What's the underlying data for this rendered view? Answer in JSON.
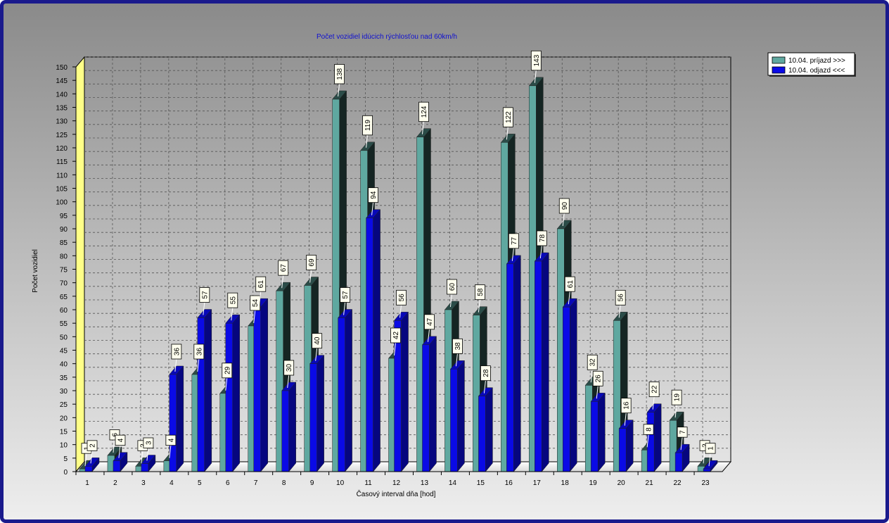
{
  "chart_data": {
    "type": "bar",
    "title": "Počet vozidiel idúcich rýchlosťou nad 60km/h",
    "xlabel": "Časový interval dňa [hod]",
    "ylabel": "Počet vozidiel",
    "ylim": [
      0,
      150
    ],
    "ytick_step": 5,
    "grid": true,
    "legend_position": "top-right",
    "categories": [
      "1",
      "2",
      "3",
      "4",
      "5",
      "6",
      "7",
      "8",
      "9",
      "10",
      "11",
      "12",
      "13",
      "14",
      "15",
      "16",
      "17",
      "18",
      "19",
      "20",
      "21",
      "22",
      "23"
    ],
    "series": [
      {
        "name": "10.04.  príjazd >>>",
        "color": "#5fa8a0",
        "values": [
          1,
          6,
          2,
          4,
          36,
          29,
          54,
          67,
          69,
          138,
          119,
          42,
          124,
          60,
          58,
          122,
          143,
          90,
          32,
          56,
          8,
          19,
          2
        ]
      },
      {
        "name": "10.04.  odjazd <<<",
        "color": "#0a0ae6",
        "values": [
          2,
          4,
          3,
          36,
          57,
          55,
          61,
          30,
          40,
          57,
          94,
          56,
          47,
          38,
          28,
          77,
          78,
          61,
          26,
          16,
          22,
          7,
          1
        ]
      }
    ]
  }
}
